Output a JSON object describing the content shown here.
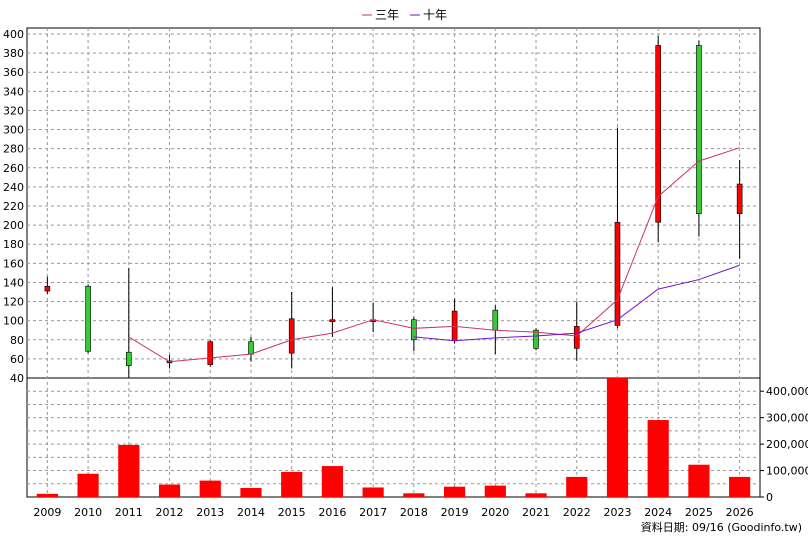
{
  "chart_data": {
    "type": "candlestick",
    "legend": [
      {
        "name": "三年",
        "color": "#cc3366"
      },
      {
        "name": "十年",
        "color": "#7711cc"
      }
    ],
    "footer": "資料日期: 09/16 (Goodinfo.tw)",
    "price_axis": {
      "min": 40,
      "max": 400,
      "step": 20,
      "ticks": [
        "400",
        "380",
        "360",
        "340",
        "320",
        "300",
        "280",
        "260",
        "240",
        "220",
        "200",
        "180",
        "160",
        "140",
        "120",
        "100",
        "80",
        "60",
        "40"
      ]
    },
    "volume_axis": {
      "min": 0,
      "max": 450000,
      "ticks": [
        "400,000",
        "300,000",
        "200,000",
        "100,000",
        "0"
      ]
    },
    "years": [
      "2009",
      "2010",
      "2011",
      "2012",
      "2013",
      "2014",
      "2015",
      "2016",
      "2017",
      "2018",
      "2019",
      "2020",
      "2021",
      "2022",
      "2023",
      "2024",
      "2025",
      "2026"
    ],
    "candles": [
      {
        "year": "2009",
        "open": 131,
        "close": 136,
        "high": 146,
        "low": 128,
        "dir": "up"
      },
      {
        "year": "2010",
        "open": 136,
        "close": 68,
        "high": 138,
        "low": 66,
        "dir": "down"
      },
      {
        "year": "2011",
        "open": 67,
        "close": 53,
        "high": 155,
        "low": 40,
        "dir": "down"
      },
      {
        "year": "2012",
        "open": 56,
        "close": 58,
        "high": 64,
        "low": 50,
        "dir": "up"
      },
      {
        "year": "2013",
        "open": 54,
        "close": 78,
        "high": 80,
        "low": 52,
        "dir": "up"
      },
      {
        "year": "2014",
        "open": 78,
        "close": 65,
        "high": 83,
        "low": 57,
        "dir": "down"
      },
      {
        "year": "2015",
        "open": 66,
        "close": 102,
        "high": 130,
        "low": 50,
        "dir": "up"
      },
      {
        "year": "2016",
        "open": 100,
        "close": 101,
        "high": 135,
        "low": 83,
        "dir": "up"
      },
      {
        "year": "2017",
        "open": 100,
        "close": 101,
        "high": 119,
        "low": 88,
        "dir": "up"
      },
      {
        "year": "2018",
        "open": 101,
        "close": 80,
        "high": 104,
        "low": 68,
        "dir": "down"
      },
      {
        "year": "2019",
        "open": 79,
        "close": 110,
        "high": 123,
        "low": 76,
        "dir": "up"
      },
      {
        "year": "2020",
        "open": 111,
        "close": 90,
        "high": 116,
        "low": 65,
        "dir": "down"
      },
      {
        "year": "2021",
        "open": 90,
        "close": 71,
        "high": 92,
        "low": 69,
        "dir": "down"
      },
      {
        "year": "2022",
        "open": 71,
        "close": 94,
        "high": 120,
        "low": 58,
        "dir": "up"
      },
      {
        "year": "2023",
        "open": 95,
        "close": 203,
        "high": 302,
        "low": 92,
        "dir": "up"
      },
      {
        "year": "2024",
        "open": 203,
        "close": 388,
        "high": 398,
        "low": 182,
        "dir": "up"
      },
      {
        "year": "2025",
        "open": 388,
        "close": 212,
        "high": 393,
        "low": 188,
        "dir": "down"
      },
      {
        "year": "2026",
        "open": 212,
        "close": 243,
        "high": 268,
        "low": 165,
        "dir": "up"
      }
    ],
    "ma3": [
      {
        "year": "2011",
        "value": 83
      },
      {
        "year": "2012",
        "value": 57
      },
      {
        "year": "2013",
        "value": 61
      },
      {
        "year": "2014",
        "value": 65
      },
      {
        "year": "2015",
        "value": 80
      },
      {
        "year": "2016",
        "value": 87
      },
      {
        "year": "2017",
        "value": 101
      },
      {
        "year": "2018",
        "value": 92
      },
      {
        "year": "2019",
        "value": 94
      },
      {
        "year": "2020",
        "value": 90
      },
      {
        "year": "2021",
        "value": 88
      },
      {
        "year": "2022",
        "value": 84
      },
      {
        "year": "2023",
        "value": 122
      },
      {
        "year": "2024",
        "value": 230
      },
      {
        "year": "2025",
        "value": 267
      },
      {
        "year": "2026",
        "value": 281
      }
    ],
    "ma10": [
      {
        "year": "2018",
        "value": 83
      },
      {
        "year": "2019",
        "value": 79
      },
      {
        "year": "2020",
        "value": 82
      },
      {
        "year": "2021",
        "value": 84
      },
      {
        "year": "2022",
        "value": 87
      },
      {
        "year": "2023",
        "value": 101
      },
      {
        "year": "2024",
        "value": 133
      },
      {
        "year": "2025",
        "value": 143
      },
      {
        "year": "2026",
        "value": 158
      }
    ],
    "volume": [
      {
        "year": "2009",
        "value": 12000
      },
      {
        "year": "2010",
        "value": 88000
      },
      {
        "year": "2011",
        "value": 197000
      },
      {
        "year": "2012",
        "value": 47000
      },
      {
        "year": "2013",
        "value": 62000
      },
      {
        "year": "2014",
        "value": 34000
      },
      {
        "year": "2015",
        "value": 95000
      },
      {
        "year": "2016",
        "value": 117000
      },
      {
        "year": "2017",
        "value": 36000
      },
      {
        "year": "2018",
        "value": 14000
      },
      {
        "year": "2019",
        "value": 39000
      },
      {
        "year": "2020",
        "value": 43000
      },
      {
        "year": "2021",
        "value": 14000
      },
      {
        "year": "2022",
        "value": 76000
      },
      {
        "year": "2023",
        "value": 460000
      },
      {
        "year": "2024",
        "value": 291000
      },
      {
        "year": "2025",
        "value": 122000
      },
      {
        "year": "2026",
        "value": 76000
      }
    ],
    "colors": {
      "up": "#ff0000",
      "down": "#33cc33",
      "volume": "#ff0000",
      "grid": "#999999"
    }
  }
}
